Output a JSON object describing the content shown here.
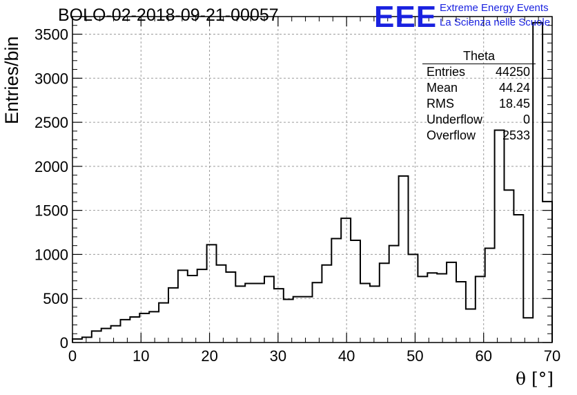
{
  "title": "BOLO-02-2018-09-21-00057",
  "logo": {
    "text": "EEE",
    "line1": "Extreme Energy Events",
    "line2": "La Scienza nelle Scuole",
    "color": "#1a22e0"
  },
  "chart_data": {
    "type": "bar",
    "histogram": "step",
    "xlabel": "θ [°]",
    "ylabel": "Entries/bin",
    "xlim": [
      0,
      70
    ],
    "ylim": [
      0,
      3700
    ],
    "xticks": [
      0,
      10,
      20,
      30,
      40,
      50,
      60,
      70
    ],
    "yticks": [
      0,
      500,
      1000,
      1500,
      2000,
      2500,
      3000,
      3500
    ],
    "grid": true,
    "bin_width": 1.4,
    "bin_edges_start": 0,
    "values": [
      40,
      60,
      130,
      160,
      190,
      260,
      290,
      330,
      350,
      450,
      620,
      820,
      760,
      830,
      1110,
      880,
      800,
      640,
      670,
      670,
      750,
      610,
      490,
      520,
      520,
      680,
      880,
      1180,
      1410,
      1160,
      670,
      640,
      900,
      1100,
      1890,
      1000,
      750,
      790,
      780,
      910,
      690,
      380,
      750,
      1070,
      2410,
      1730,
      1450,
      280,
      3630,
      1600
    ],
    "line_color": "#000000"
  },
  "stats": {
    "title": "Theta",
    "rows": [
      {
        "label": "Entries",
        "value": "44250"
      },
      {
        "label": "Mean",
        "value": "44.24"
      },
      {
        "label": "RMS",
        "value": "18.45"
      },
      {
        "label": "Underflow",
        "value": "0"
      },
      {
        "label": "Overflow",
        "value": "2533"
      }
    ]
  }
}
